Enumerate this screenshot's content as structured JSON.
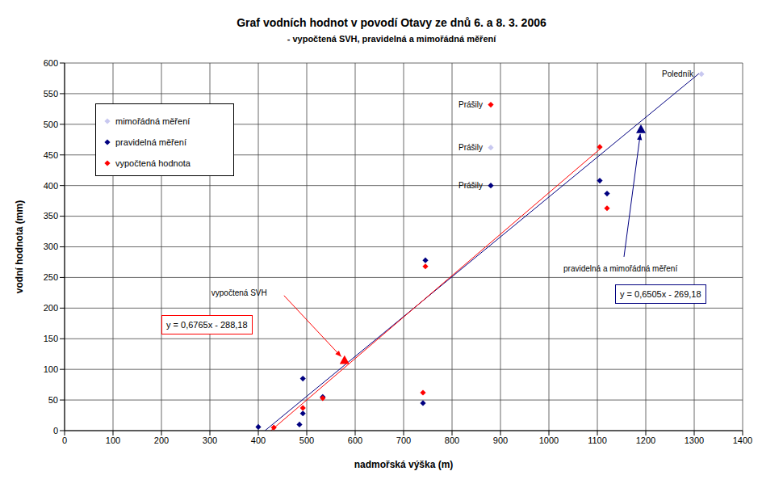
{
  "chart_data": {
    "type": "scatter",
    "title": "Graf vodních hodnot v povodí Otavy ze dnů 6. a 8. 3. 2006",
    "subtitle": "- vypočtená SVH, pravidelná a mimořádná měření",
    "x_label": "nadmořská výška (m)",
    "y_label": "vodní hodnota (mm)",
    "xlim": [
      0,
      1400
    ],
    "xticks": [
      0,
      100,
      200,
      300,
      400,
      500,
      600,
      700,
      800,
      900,
      1000,
      1100,
      1200,
      1300,
      1400
    ],
    "ylim": [
      0,
      600
    ],
    "yticks": [
      0,
      50,
      100,
      150,
      200,
      250,
      300,
      350,
      400,
      450,
      500,
      550,
      600
    ],
    "grid": true,
    "legend": "top-left",
    "series": [
      {
        "name": "mimořádná měření",
        "color": "#c8c8f0",
        "marker": "diamond",
        "x": [
          1315,
          880
        ],
        "values": [
          582,
          462
        ]
      },
      {
        "name": "pravidelná měření",
        "color": "#000080",
        "marker": "diamond",
        "x": [
          400,
          485,
          492,
          492,
          533,
          740,
          745,
          880,
          1105,
          1120
        ],
        "values": [
          6,
          10,
          28,
          85,
          55,
          45,
          278,
          400,
          408,
          387
        ],
        "trendline": {
          "slope": 0.6505,
          "intercept": -269.18,
          "label": "y = 0,6505x - 269,18",
          "x": [
            414,
            1310
          ]
        }
      },
      {
        "name": "vypočtená hodnota",
        "color": "#ff0000",
        "marker": "diamond",
        "x": [
          432,
          492,
          533,
          740,
          745,
          880,
          1105,
          1120
        ],
        "values": [
          5,
          37,
          53,
          62,
          268,
          532,
          463,
          363
        ],
        "trendline": {
          "slope": 0.6765,
          "intercept": -288.18,
          "label": "y = 0,6765x - 288,18",
          "x": [
            426,
            1105
          ]
        }
      }
    ],
    "annotations": [
      {
        "text": "Poledník",
        "x": 1315,
        "y": 582
      },
      {
        "text": "Prášily",
        "x": 880,
        "y": 532
      },
      {
        "text": "Prášily",
        "x": 880,
        "y": 462
      },
      {
        "text": "Prášily",
        "x": 880,
        "y": 400
      },
      {
        "text": "vypočtená SVH",
        "x": 578,
        "y": 115,
        "color": "#ff0000",
        "marker": "triangle"
      },
      {
        "text": "pravidelná a mimořádná měření",
        "x": 1190,
        "y": 492,
        "color": "#000080",
        "marker": "triangle"
      }
    ]
  }
}
